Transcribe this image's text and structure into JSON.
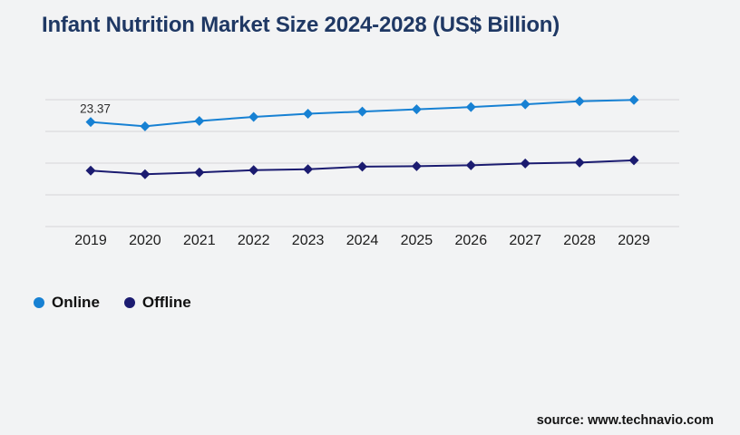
{
  "header": {
    "title": "Infant Nutrition Market Size 2024-2028 (US$ Billion)"
  },
  "chart_data": {
    "type": "line",
    "categories": [
      "2019",
      "2020",
      "2021",
      "2022",
      "2023",
      "2024",
      "2025",
      "2026",
      "2027",
      "2028",
      "2029"
    ],
    "series": [
      {
        "name": "Online",
        "color": "#1781d3",
        "marker": "diamond",
        "values": [
          23.37,
          22.4,
          23.6,
          24.5,
          25.2,
          25.7,
          26.2,
          26.7,
          27.3,
          28.0,
          28.3
        ]
      },
      {
        "name": "Offline",
        "color": "#1b1b70",
        "marker": "diamond",
        "values": [
          12.5,
          11.7,
          12.1,
          12.6,
          12.8,
          13.4,
          13.5,
          13.7,
          14.1,
          14.3,
          14.8
        ]
      }
    ],
    "annotations": [
      {
        "series": "Online",
        "x": "2019",
        "text": "23.37"
      }
    ],
    "title": "Infant Nutrition Market Size 2024-2028 (US$ Billion)",
    "xlabel": "",
    "ylabel": "",
    "ylim": [
      0,
      28.35
    ],
    "grid": "horizontal-only",
    "y_axis_labels_visible": false,
    "legend_position": "bottom-left"
  },
  "legend": {
    "items": [
      {
        "label": "Online"
      },
      {
        "label": "Offline"
      }
    ]
  },
  "footer": {
    "source": "source: www.technavio.com"
  },
  "colors": {
    "background": "#f2f3f4",
    "title_text": "#1f3864",
    "gridline": "#d6d6d8",
    "x_axis_label": "#1c1c1c",
    "annotation_text": "#2e2e2e",
    "online_series": "#1781d3",
    "offline_series": "#1b1b70"
  }
}
